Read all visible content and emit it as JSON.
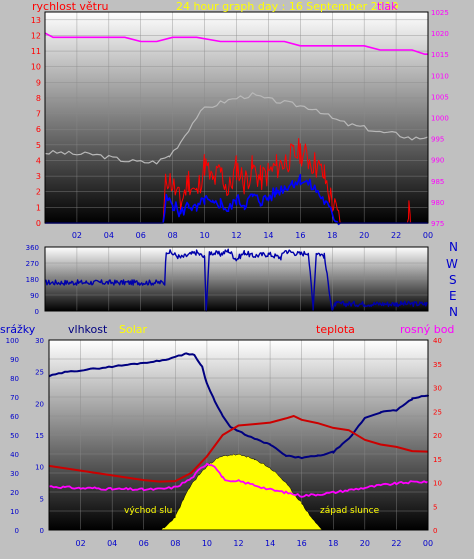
{
  "header": {
    "left_label": "rychlost větru",
    "title": "24 hour graph day : 16 September 2019",
    "right_label": "tlak"
  },
  "compass": [
    "N",
    "W",
    "S",
    "E",
    "N"
  ],
  "bottom_header": {
    "rain_label": "srážky",
    "humidity_label": "vlhkost",
    "solar_label": "Solar",
    "temp_label": "teplota",
    "dew_label": "rosný bod"
  },
  "annotations": {
    "sunrise": "východ slu",
    "sunset": "západ slunce"
  },
  "colors": {
    "wind": "#0000ff",
    "gust": "#ff0000",
    "pressure": "#ff00ff",
    "pressure_grey": "#b8b8b8",
    "direction": "#0000aa",
    "humidity": "#000080",
    "temperature": "#cc0000",
    "dew": "#ff00ff",
    "solar": "#ffff00",
    "title": "#ffff00",
    "axis_blue": "#0000cc",
    "axis_red": "#ff0000"
  },
  "chart_data": [
    {
      "type": "line",
      "name_key": "wind-pressure",
      "x_ticks": [
        "02",
        "04",
        "06",
        "08",
        "10",
        "12",
        "14",
        "16",
        "18",
        "20",
        "22",
        "00"
      ],
      "y_left_ticks": [
        "0",
        "1",
        "2",
        "3",
        "4",
        "5",
        "6",
        "7",
        "8",
        "9",
        "10",
        "11",
        "12",
        "13"
      ],
      "y_right_ticks": [
        "975",
        "980",
        "985",
        "990",
        "995",
        "1000",
        "1005",
        "1010",
        "1015",
        "1020",
        "1025"
      ],
      "ylim_left": [
        0,
        13.5
      ],
      "ylim_right": [
        975,
        1025
      ],
      "pressure_hpa": [
        [
          0,
          1020
        ],
        [
          0.5,
          1019
        ],
        [
          1.5,
          1019
        ],
        [
          3,
          1019
        ],
        [
          5,
          1019
        ],
        [
          6,
          1018
        ],
        [
          7,
          1018
        ],
        [
          8,
          1019
        ],
        [
          9.5,
          1019
        ],
        [
          11,
          1018
        ],
        [
          12.5,
          1018
        ],
        [
          14,
          1018
        ],
        [
          15,
          1018
        ],
        [
          16,
          1017
        ],
        [
          17,
          1017
        ],
        [
          18,
          1017
        ],
        [
          19,
          1017
        ],
        [
          20,
          1017
        ],
        [
          21,
          1016
        ],
        [
          22,
          1016
        ],
        [
          23,
          1016
        ],
        [
          23.8,
          1015
        ],
        [
          24,
          1015
        ]
      ],
      "pressure_trend_mps": [
        [
          0,
          4.5
        ],
        [
          1,
          4.5
        ],
        [
          2,
          4.4
        ],
        [
          3,
          4.4
        ],
        [
          4,
          4.2
        ],
        [
          5,
          4.0
        ],
        [
          6,
          3.9
        ],
        [
          7,
          3.9
        ],
        [
          7.8,
          4.3
        ],
        [
          8.5,
          5.2
        ],
        [
          9,
          6.0
        ],
        [
          9.5,
          6.8
        ],
        [
          10,
          7.3
        ],
        [
          11,
          7.7
        ],
        [
          12,
          8.0
        ],
        [
          13,
          8.2
        ],
        [
          14,
          7.9
        ],
        [
          15,
          7.7
        ],
        [
          16,
          7.5
        ],
        [
          17,
          7.3
        ],
        [
          18,
          6.7
        ],
        [
          19,
          6.3
        ],
        [
          20,
          6.1
        ],
        [
          21,
          5.8
        ],
        [
          22,
          5.7
        ],
        [
          23,
          5.4
        ],
        [
          24,
          5.5
        ]
      ],
      "wind_mps": [
        [
          0,
          0
        ],
        [
          7.4,
          0
        ],
        [
          7.6,
          1.5
        ],
        [
          8,
          1.2
        ],
        [
          8.5,
          0.6
        ],
        [
          9,
          1.2
        ],
        [
          9.5,
          0.8
        ],
        [
          10,
          1.5
        ],
        [
          10.5,
          1.1
        ],
        [
          11,
          1.3
        ],
        [
          11.5,
          0.8
        ],
        [
          12,
          1.5
        ],
        [
          12.5,
          1.2
        ],
        [
          13,
          1.7
        ],
        [
          13.5,
          1.4
        ],
        [
          14,
          1.6
        ],
        [
          14.5,
          2.0
        ],
        [
          15,
          2.3
        ],
        [
          15.5,
          2.6
        ],
        [
          16,
          2.8
        ],
        [
          16.5,
          2.5
        ],
        [
          17,
          2.1
        ],
        [
          17.5,
          1.4
        ],
        [
          18,
          0.5
        ],
        [
          18.5,
          0
        ],
        [
          24,
          0
        ]
      ],
      "gust_mps": [
        [
          0,
          0
        ],
        [
          7.4,
          0
        ],
        [
          7.6,
          3.0
        ],
        [
          8,
          2.5
        ],
        [
          8.5,
          1.2
        ],
        [
          9,
          2.8
        ],
        [
          9.5,
          1.8
        ],
        [
          10,
          3.8
        ],
        [
          10.5,
          2.6
        ],
        [
          11,
          3.3
        ],
        [
          11.5,
          2.0
        ],
        [
          12,
          3.6
        ],
        [
          12.5,
          2.6
        ],
        [
          13,
          3.5
        ],
        [
          13.5,
          2.8
        ],
        [
          14,
          3.2
        ],
        [
          14.5,
          3.6
        ],
        [
          15,
          3.9
        ],
        [
          15.5,
          4.3
        ],
        [
          16,
          4.6
        ],
        [
          16.5,
          4.1
        ],
        [
          17,
          3.7
        ],
        [
          17.5,
          3.0
        ],
        [
          18,
          1.3
        ],
        [
          18.5,
          0
        ],
        [
          22.7,
          0
        ],
        [
          22.8,
          1.0
        ],
        [
          22.9,
          0
        ],
        [
          24,
          0
        ]
      ]
    },
    {
      "type": "line",
      "name_key": "wind-direction",
      "x_ticks": [
        "02",
        "04",
        "06",
        "08",
        "10",
        "12",
        "14",
        "16",
        "18",
        "20",
        "22",
        "00"
      ],
      "y_ticks": [
        "0",
        "90",
        "180",
        "270",
        "360"
      ],
      "ylim": [
        0,
        360
      ],
      "direction_deg": [
        [
          0,
          160
        ],
        [
          7.5,
          160
        ],
        [
          7.6,
          340
        ],
        [
          8.5,
          300
        ],
        [
          9.5,
          330
        ],
        [
          10,
          300
        ],
        [
          10.1,
          0
        ],
        [
          10.3,
          330
        ],
        [
          11,
          320
        ],
        [
          11.5,
          340
        ],
        [
          12,
          290
        ],
        [
          12.5,
          330
        ],
        [
          13,
          310
        ],
        [
          14,
          320
        ],
        [
          14.8,
          300
        ],
        [
          15,
          340
        ],
        [
          16,
          320
        ],
        [
          16.5,
          330
        ],
        [
          16.8,
          20
        ],
        [
          17,
          330
        ],
        [
          17.5,
          310
        ],
        [
          18,
          0
        ],
        [
          18.2,
          40
        ],
        [
          19,
          40
        ],
        [
          22,
          40
        ],
        [
          24,
          40
        ]
      ]
    },
    {
      "type": "area",
      "name_key": "humidity-temp-solar",
      "x_ticks": [
        "02",
        "04",
        "06",
        "08",
        "10",
        "12",
        "14",
        "16",
        "18",
        "20",
        "22",
        "00"
      ],
      "y_rain_ticks": [
        "0",
        "10",
        "20",
        "30",
        "40",
        "50",
        "60",
        "70",
        "80",
        "90",
        "100"
      ],
      "y_humidity_ticks": [
        "0",
        "5",
        "10",
        "15",
        "20",
        "25",
        "30"
      ],
      "y_temp_ticks": [
        "0",
        "5",
        "10",
        "15",
        "20",
        "25",
        "30",
        "35",
        "40"
      ],
      "ylim_humidity": [
        0,
        100
      ],
      "ylim_temp": [
        0,
        40
      ],
      "humidity_pct": [
        [
          0,
          81
        ],
        [
          1,
          83
        ],
        [
          2,
          84
        ],
        [
          3,
          85
        ],
        [
          4,
          86
        ],
        [
          5,
          87
        ],
        [
          6,
          88
        ],
        [
          7,
          89
        ],
        [
          8,
          91
        ],
        [
          8.7,
          93
        ],
        [
          9.2,
          92
        ],
        [
          9.7,
          86
        ],
        [
          10,
          77
        ],
        [
          10.5,
          68
        ],
        [
          11,
          60
        ],
        [
          11.5,
          54
        ],
        [
          12,
          52
        ],
        [
          13,
          48
        ],
        [
          14,
          45
        ],
        [
          15,
          39
        ],
        [
          16,
          38
        ],
        [
          17,
          39
        ],
        [
          18,
          41
        ],
        [
          19,
          48
        ],
        [
          20,
          59
        ],
        [
          21,
          62
        ],
        [
          22,
          63
        ],
        [
          23,
          69
        ],
        [
          24,
          71
        ]
      ],
      "temperature_c": [
        [
          0,
          13.5
        ],
        [
          1,
          13.0
        ],
        [
          2,
          12.5
        ],
        [
          3,
          12.0
        ],
        [
          4,
          11.5
        ],
        [
          5,
          11.0
        ],
        [
          6,
          10.5
        ],
        [
          7,
          10.2
        ],
        [
          8,
          10.3
        ],
        [
          9,
          12.0
        ],
        [
          10,
          15.5
        ],
        [
          11,
          20.0
        ],
        [
          12,
          22.0
        ],
        [
          13,
          22.3
        ],
        [
          14,
          22.6
        ],
        [
          15,
          23.5
        ],
        [
          15.5,
          24.0
        ],
        [
          16,
          23.2
        ],
        [
          17,
          22.5
        ],
        [
          18,
          21.5
        ],
        [
          19,
          21.0
        ],
        [
          20,
          19.0
        ],
        [
          21,
          18.0
        ],
        [
          22,
          17.5
        ],
        [
          23,
          16.6
        ],
        [
          24,
          16.5
        ]
      ],
      "dew_point_c": [
        [
          0,
          9.2
        ],
        [
          1,
          9.0
        ],
        [
          2,
          8.8
        ],
        [
          3,
          8.8
        ],
        [
          4,
          8.6
        ],
        [
          5,
          8.6
        ],
        [
          6,
          8.5
        ],
        [
          7,
          8.6
        ],
        [
          8,
          9.0
        ],
        [
          9,
          10.8
        ],
        [
          9.5,
          12.6
        ],
        [
          10,
          14.0
        ],
        [
          10.5,
          13.5
        ],
        [
          11,
          11.0
        ],
        [
          11.5,
          10.0
        ],
        [
          12,
          10.3
        ],
        [
          13,
          9.5
        ],
        [
          14,
          8.5
        ],
        [
          15,
          7.9
        ],
        [
          16,
          7.2
        ],
        [
          17,
          7.5
        ],
        [
          18,
          7.9
        ],
        [
          19,
          8.4
        ],
        [
          20,
          8.9
        ],
        [
          21,
          9.4
        ],
        [
          22,
          9.8
        ],
        [
          23,
          10.1
        ],
        [
          24,
          10.2
        ]
      ],
      "solar_rel": [
        [
          7.0,
          0
        ],
        [
          7.3,
          1
        ],
        [
          7.6,
          4
        ],
        [
          8.0,
          8
        ],
        [
          8.5,
          18
        ],
        [
          9,
          27
        ],
        [
          9.5,
          33
        ],
        [
          10,
          38
        ],
        [
          10.5,
          42
        ],
        [
          11,
          44
        ],
        [
          11.5,
          45
        ],
        [
          12,
          45
        ],
        [
          12.5,
          44
        ],
        [
          13,
          42
        ],
        [
          13.5,
          40
        ],
        [
          14,
          37
        ],
        [
          14.5,
          33
        ],
        [
          15,
          28
        ],
        [
          15.5,
          22
        ],
        [
          16,
          16
        ],
        [
          16.5,
          9
        ],
        [
          17,
          3
        ],
        [
          17.3,
          0
        ]
      ]
    }
  ]
}
